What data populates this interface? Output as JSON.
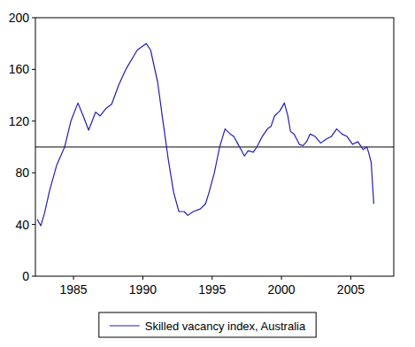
{
  "chart_data": {
    "type": "line",
    "x": [
      1982.38,
      1982.64,
      1982.89,
      1983.27,
      1983.79,
      1984.36,
      1984.81,
      1985.32,
      1985.7,
      1986.09,
      1986.6,
      1986.92,
      1987.36,
      1987.75,
      1988.26,
      1988.77,
      1989.6,
      1990.24,
      1990.56,
      1991.07,
      1991.45,
      1991.84,
      1992.22,
      1992.6,
      1992.99,
      1993.24,
      1993.63,
      1994.14,
      1994.52,
      1994.78,
      1995.16,
      1995.54,
      1995.93,
      1996.31,
      1996.57,
      1996.82,
      1997.08,
      1997.33,
      1997.59,
      1997.97,
      1998.23,
      1998.61,
      1998.99,
      1999.25,
      1999.5,
      1999.89,
      2000.21,
      2000.46,
      2000.65,
      2000.91,
      2001.29,
      2001.55,
      2001.81,
      2002.06,
      2002.44,
      2002.83,
      2003.21,
      2003.59,
      2003.98,
      2004.36,
      2004.74,
      2005.13,
      2005.51,
      2005.89,
      2006.15,
      2006.28,
      2006.47,
      2006.66
    ],
    "series": [
      {
        "name": "Skilled vacancy index, Australia",
        "color": "#1f1fb4",
        "values": [
          44,
          39,
          48,
          66,
          86,
          100,
          120,
          134,
          124,
          113,
          127,
          124,
          130,
          133,
          148,
          160,
          175,
          180,
          175,
          150,
          120,
          90,
          65,
          50,
          50,
          47,
          50,
          52,
          56,
          65,
          80,
          100,
          114,
          110,
          108,
          103,
          98,
          93,
          97,
          96,
          100,
          108,
          114,
          116,
          124,
          128,
          134,
          124,
          112,
          110,
          102,
          101,
          104,
          110,
          108,
          103,
          106,
          108,
          114,
          110,
          108,
          102,
          104,
          98,
          100,
          96,
          88,
          56
        ]
      }
    ],
    "xlim": [
      1982.25,
      2008.1
    ],
    "xticks": [
      1985,
      1990,
      1995,
      2000,
      2005
    ],
    "ylim": [
      0,
      200
    ],
    "yticks": [
      0,
      40,
      80,
      120,
      160,
      200
    ],
    "reference_line": 100,
    "grid": false,
    "legend": "bottom"
  }
}
